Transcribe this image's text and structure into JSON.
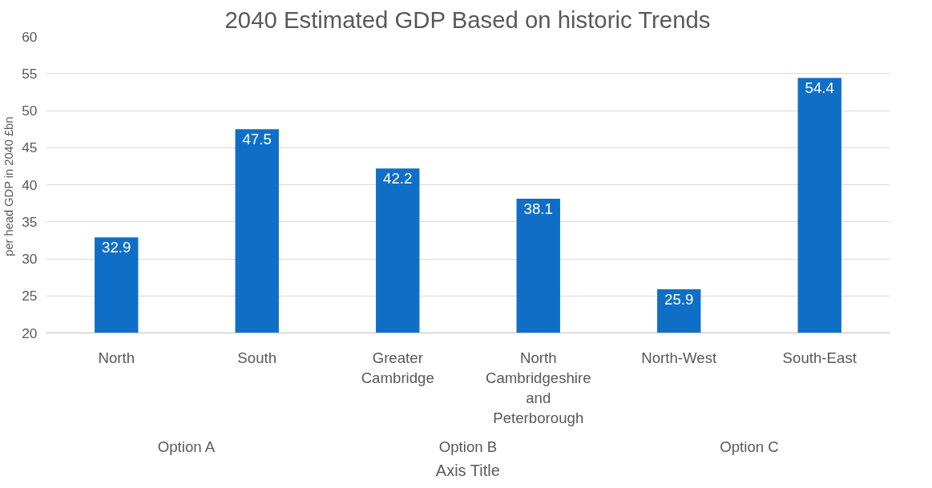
{
  "chart_data": {
    "type": "bar",
    "title": "2040 Estimated GDP Based on historic Trends",
    "xlabel": "Axis Title",
    "ylabel": "per head GDP in 2040  £bn",
    "categories": [
      "North",
      "South",
      "Greater Cambridge",
      "North Cambridgeshire and Peterborough",
      "North-West",
      "South-East"
    ],
    "values": [
      32.9,
      47.5,
      42.2,
      38.1,
      25.9,
      54.4
    ],
    "color": "#0f6fc6",
    "annotations": [
      "Option A",
      "Option B",
      "Option C"
    ],
    "ylim": [
      20,
      60
    ],
    "yticks": [
      20,
      25,
      30,
      35,
      40,
      45,
      50,
      55,
      60
    ],
    "grid": "y",
    "data_labels": true
  }
}
